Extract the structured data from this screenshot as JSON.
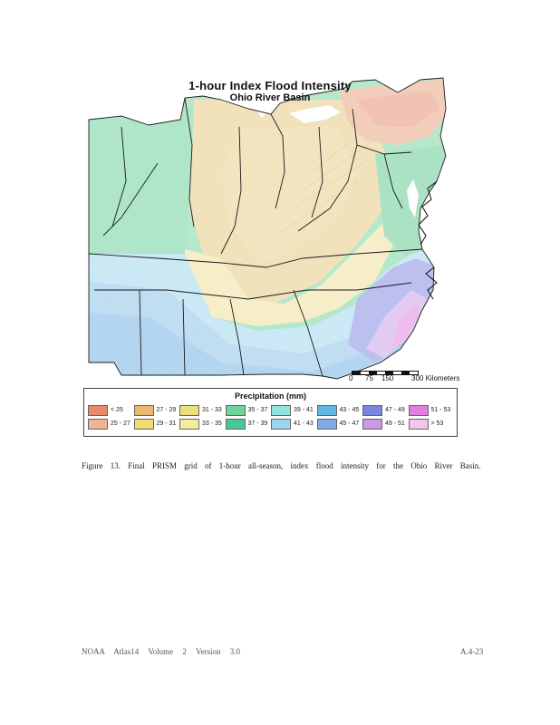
{
  "map": {
    "title_line1": "1-hour Index Flood Intensity",
    "title_line2": "Ohio River Basin",
    "scale_labels": [
      "0",
      "75",
      "150",
      "300 Kilometers"
    ]
  },
  "legend": {
    "title": "Precipitation (mm)",
    "items": [
      {
        "label": "< 25",
        "color": "#e8896a"
      },
      {
        "label": "27 - 29",
        "color": "#e6b870"
      },
      {
        "label": "31 - 33",
        "color": "#ebe07a"
      },
      {
        "label": "35 - 37",
        "color": "#6fd49a"
      },
      {
        "label": "39 - 41",
        "color": "#8fe3da"
      },
      {
        "label": "43 - 45",
        "color": "#62b6e3"
      },
      {
        "label": "47 - 49",
        "color": "#7b85e0"
      },
      {
        "label": "51 - 53",
        "color": "#e07ee0"
      },
      {
        "label": "25 - 27",
        "color": "#efb493"
      },
      {
        "label": "29 - 31",
        "color": "#f0dc6e"
      },
      {
        "label": "33 - 35",
        "color": "#f3ee9c"
      },
      {
        "label": "37 - 39",
        "color": "#48c993"
      },
      {
        "label": "41 - 43",
        "color": "#9bd6ef"
      },
      {
        "label": "45 - 47",
        "color": "#84a9e8"
      },
      {
        "label": "49 - 51",
        "color": "#c99ae8"
      },
      {
        "label": "> 53",
        "color": "#f2c6ef"
      }
    ]
  },
  "caption": "Figure 13. Final PRISM grid of 1-hour all-season, index flood intensity for the Ohio River Basin.",
  "footer": {
    "left": "NOAA Atlas14 Volume 2 Version 3.0",
    "right": "A.4-23"
  }
}
